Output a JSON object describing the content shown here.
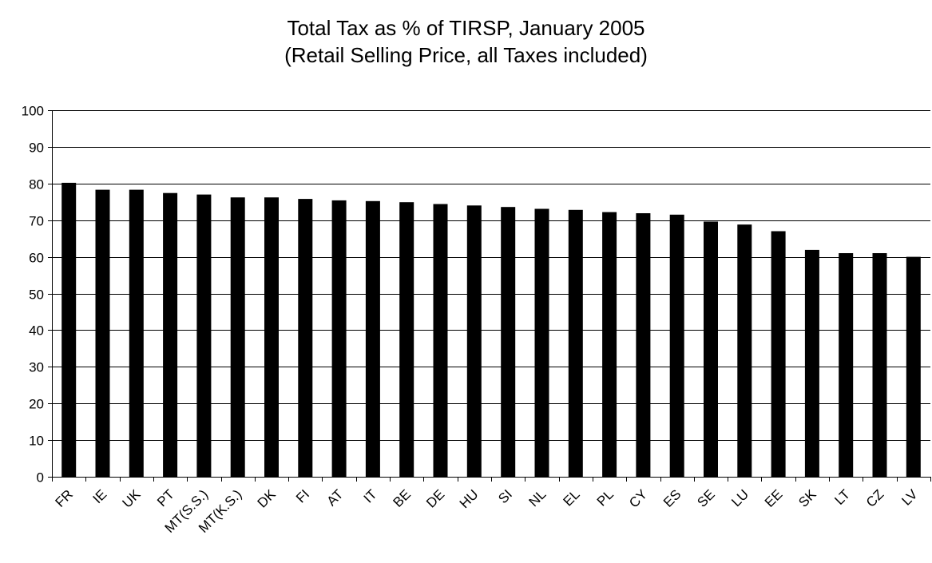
{
  "chart_data": {
    "type": "bar",
    "title": "Total Tax as % of TIRSP, January 2005",
    "subtitle": "(Retail Selling Price, all Taxes included)",
    "xlabel": "",
    "ylabel": "",
    "ylim": [
      0,
      100
    ],
    "yticks": [
      0,
      10,
      20,
      30,
      40,
      50,
      60,
      70,
      80,
      90,
      100
    ],
    "grid": true,
    "legend": "none",
    "bar_color": "#000000",
    "categories": [
      "FR",
      "IE",
      "UK",
      "PT",
      "MT(S.S.)",
      "MT(K.S.)",
      "DK",
      "FI",
      "AT",
      "IT",
      "BE",
      "DE",
      "HU",
      "SI",
      "NL",
      "EL",
      "PL",
      "CY",
      "ES",
      "SE",
      "LU",
      "EE",
      "SK",
      "LT",
      "CZ",
      "LV"
    ],
    "values": [
      80.2,
      78.3,
      78.3,
      77.4,
      77.0,
      76.2,
      76.2,
      75.8,
      75.4,
      75.2,
      74.9,
      74.4,
      74.0,
      73.6,
      73.1,
      72.8,
      72.2,
      71.9,
      71.5,
      69.6,
      68.8,
      67.0,
      61.9,
      61.0,
      61.0,
      60.0
    ]
  }
}
